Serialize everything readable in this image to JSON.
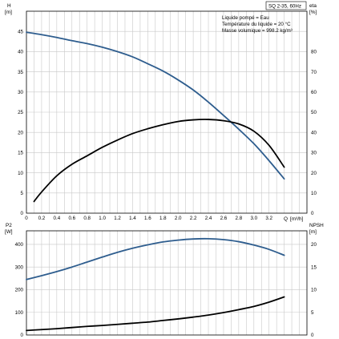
{
  "chart_data": [
    {
      "type": "line",
      "panel": "upper",
      "title": "SQ 2-35, 60Hz",
      "annotations": [
        "Liquide pompé = Eau",
        "Température du liquide = 20 °C",
        "Masse volumique = 998.2  kg/m³"
      ],
      "x_axis": {
        "label": "Q",
        "unit": "[m³/h]",
        "range": [
          0,
          3.7
        ],
        "ticks": [
          "0",
          "0.2",
          "0.4",
          "0.6",
          "0.8",
          "1.0",
          "1.2",
          "1.4",
          "1.6",
          "1.8",
          "2.0",
          "2.2",
          "2.4",
          "2.6",
          "2.8",
          "3.0",
          "3.2"
        ]
      },
      "y_left": {
        "label": "H",
        "unit": "[m]",
        "range": [
          0,
          50
        ],
        "ticks": [
          "0",
          "5",
          "10",
          "15",
          "20",
          "25",
          "30",
          "35",
          "40",
          "45"
        ]
      },
      "y_right": {
        "label": "eta",
        "unit": "[%]",
        "range": [
          0,
          100
        ],
        "ticks": [
          "0",
          "10",
          "20",
          "30",
          "40",
          "50",
          "60",
          "70",
          "80"
        ]
      },
      "grid": true,
      "series": [
        {
          "axis": "left",
          "color": "#2e5d8e",
          "x": [
            0,
            0.2,
            0.4,
            0.6,
            0.8,
            1.0,
            1.2,
            1.4,
            1.6,
            1.8,
            2.0,
            2.2,
            2.4,
            2.6,
            2.8,
            3.0,
            3.2,
            3.4
          ],
          "y": [
            44.8,
            44.2,
            43.5,
            42.7,
            42.0,
            41.1,
            40.0,
            38.7,
            37.0,
            35.2,
            33.0,
            30.5,
            27.5,
            24.2,
            20.8,
            17.2,
            13.0,
            8.5
          ]
        },
        {
          "axis": "right",
          "color": "#000000",
          "x": [
            0.1,
            0.2,
            0.4,
            0.6,
            0.8,
            1.0,
            1.2,
            1.4,
            1.6,
            1.8,
            2.0,
            2.2,
            2.4,
            2.6,
            2.8,
            3.0,
            3.2,
            3.4
          ],
          "y": [
            5.8,
            10.5,
            18.5,
            24.2,
            28.4,
            32.6,
            36.2,
            39.4,
            41.8,
            43.8,
            45.4,
            46.2,
            46.4,
            45.8,
            44.2,
            40.6,
            33.6,
            22.8
          ]
        }
      ]
    },
    {
      "type": "line",
      "panel": "lower",
      "x_axis": {
        "range": [
          0,
          3.7
        ]
      },
      "y_left": {
        "label": "P2",
        "unit": "[W]",
        "range": [
          0,
          460
        ],
        "ticks": [
          "0",
          "100",
          "200",
          "300",
          "400"
        ]
      },
      "y_right": {
        "label": "NPSH",
        "unit": "[m]",
        "range": [
          0,
          23
        ],
        "ticks": [
          "0",
          "5",
          "10",
          "15",
          "20"
        ]
      },
      "grid": true,
      "series": [
        {
          "axis": "left",
          "color": "#2e5d8e",
          "x": [
            0,
            0.2,
            0.4,
            0.6,
            0.8,
            1.0,
            1.2,
            1.4,
            1.6,
            1.8,
            2.0,
            2.2,
            2.4,
            2.6,
            2.8,
            3.0,
            3.2,
            3.4
          ],
          "y": [
            245,
            262,
            280,
            300,
            322,
            344,
            365,
            383,
            398,
            411,
            419,
            424,
            425,
            421,
            412,
            397,
            378,
            352
          ]
        },
        {
          "axis": "left",
          "color": "#000000",
          "x": [
            0,
            0.2,
            0.4,
            0.6,
            0.8,
            1.0,
            1.2,
            1.4,
            1.6,
            1.8,
            2.0,
            2.2,
            2.4,
            2.6,
            2.8,
            3.0,
            3.2,
            3.4
          ],
          "y": [
            20,
            24,
            28,
            33,
            38,
            42,
            47,
            52,
            57,
            64,
            71,
            79,
            88,
            99,
            112,
            126,
            145,
            168
          ]
        }
      ]
    }
  ]
}
